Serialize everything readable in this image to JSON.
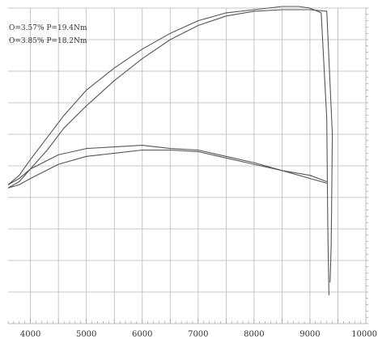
{
  "chart_data": {
    "type": "line",
    "title": "",
    "xlabel": "",
    "ylabel": "",
    "xlim": [
      3600,
      10000
    ],
    "ylim": [
      0,
      10
    ],
    "x_ticks": [
      4000,
      5000,
      6000,
      7000,
      8000,
      9000,
      10000
    ],
    "grid": true,
    "annotations": [
      {
        "text": "O=3.57% P=19.4Nm"
      },
      {
        "text": "O=3.85% P=18.2Nm"
      }
    ],
    "series": [
      {
        "values": [
          [
            3600,
            4.4
          ],
          [
            3800,
            4.7
          ],
          [
            4000,
            5.2
          ],
          [
            4300,
            5.9
          ],
          [
            4600,
            6.6
          ],
          [
            5000,
            7.4
          ],
          [
            5500,
            8.1
          ],
          [
            6000,
            8.7
          ],
          [
            6500,
            9.2
          ],
          [
            7000,
            9.6
          ],
          [
            7500,
            9.85
          ],
          [
            8000,
            9.95
          ],
          [
            8500,
            10.05
          ],
          [
            8800,
            10.05
          ],
          [
            9000,
            10.0
          ],
          [
            9200,
            9.85
          ],
          [
            9300,
            6.5
          ],
          [
            9320,
            3.0
          ],
          [
            9340,
            0.9
          ]
        ]
      },
      {
        "values": [
          [
            3600,
            4.4
          ],
          [
            3800,
            4.6
          ],
          [
            4000,
            4.9
          ],
          [
            4300,
            5.5
          ],
          [
            4600,
            6.2
          ],
          [
            5000,
            6.9
          ],
          [
            5500,
            7.7
          ],
          [
            6000,
            8.4
          ],
          [
            6500,
            9.0
          ],
          [
            7000,
            9.45
          ],
          [
            7500,
            9.75
          ],
          [
            8000,
            9.9
          ],
          [
            8500,
            9.95
          ],
          [
            8800,
            9.95
          ],
          [
            9000,
            9.95
          ],
          [
            9300,
            9.9
          ],
          [
            9400,
            6.0
          ],
          [
            9380,
            2.5
          ],
          [
            9360,
            1.3
          ]
        ]
      },
      {
        "values": [
          [
            3600,
            4.3
          ],
          [
            3800,
            4.5
          ],
          [
            4000,
            4.9
          ],
          [
            4500,
            5.35
          ],
          [
            5000,
            5.55
          ],
          [
            5500,
            5.6
          ],
          [
            6000,
            5.65
          ],
          [
            6500,
            5.55
          ],
          [
            7000,
            5.5
          ],
          [
            7500,
            5.3
          ],
          [
            8000,
            5.1
          ],
          [
            8500,
            4.85
          ],
          [
            9000,
            4.6
          ],
          [
            9300,
            4.45
          ]
        ]
      },
      {
        "values": [
          [
            3600,
            4.3
          ],
          [
            3800,
            4.4
          ],
          [
            4000,
            4.6
          ],
          [
            4500,
            5.05
          ],
          [
            5000,
            5.3
          ],
          [
            5500,
            5.4
          ],
          [
            6000,
            5.5
          ],
          [
            6500,
            5.5
          ],
          [
            7000,
            5.45
          ],
          [
            7500,
            5.25
          ],
          [
            8000,
            5.05
          ],
          [
            8500,
            4.85
          ],
          [
            9000,
            4.7
          ],
          [
            9300,
            4.5
          ]
        ]
      }
    ]
  }
}
